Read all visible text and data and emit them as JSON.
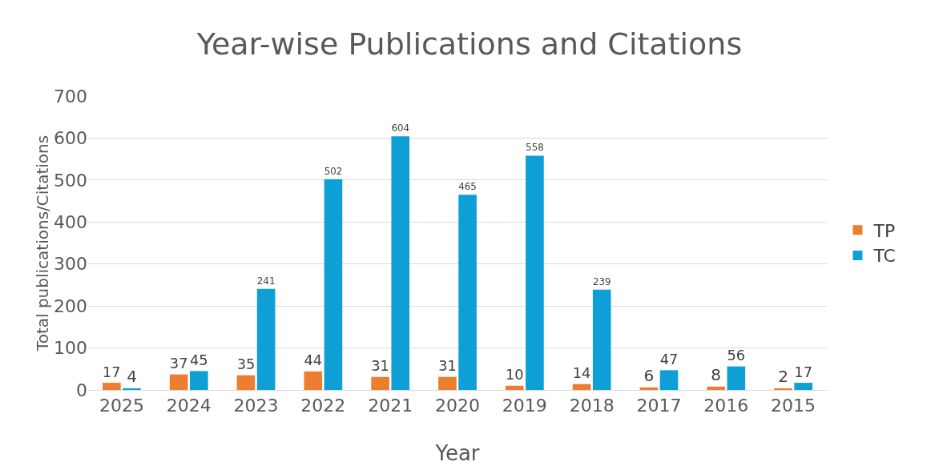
{
  "chart_data": {
    "type": "bar",
    "title": "Year-wise Publications and Citations",
    "xlabel": "Year",
    "ylabel": "Total publications/Citations",
    "categories": [
      "2025",
      "2024",
      "2023",
      "2022",
      "2021",
      "2020",
      "2019",
      "2018",
      "2017",
      "2016",
      "2015"
    ],
    "series": [
      {
        "name": "TP",
        "color": "#ed7d31",
        "values": [
          17,
          37,
          35,
          44,
          31,
          31,
          10,
          14,
          6,
          8,
          2
        ]
      },
      {
        "name": "TC",
        "color": "#0e9fd6",
        "values": [
          4,
          45,
          241,
          502,
          604,
          465,
          558,
          239,
          47,
          56,
          17
        ]
      }
    ],
    "ylim": [
      0,
      700
    ],
    "yticks": [
      0,
      100,
      200,
      300,
      400,
      500,
      600,
      700
    ],
    "grid": "y",
    "legend": "right",
    "data_labels": true
  }
}
